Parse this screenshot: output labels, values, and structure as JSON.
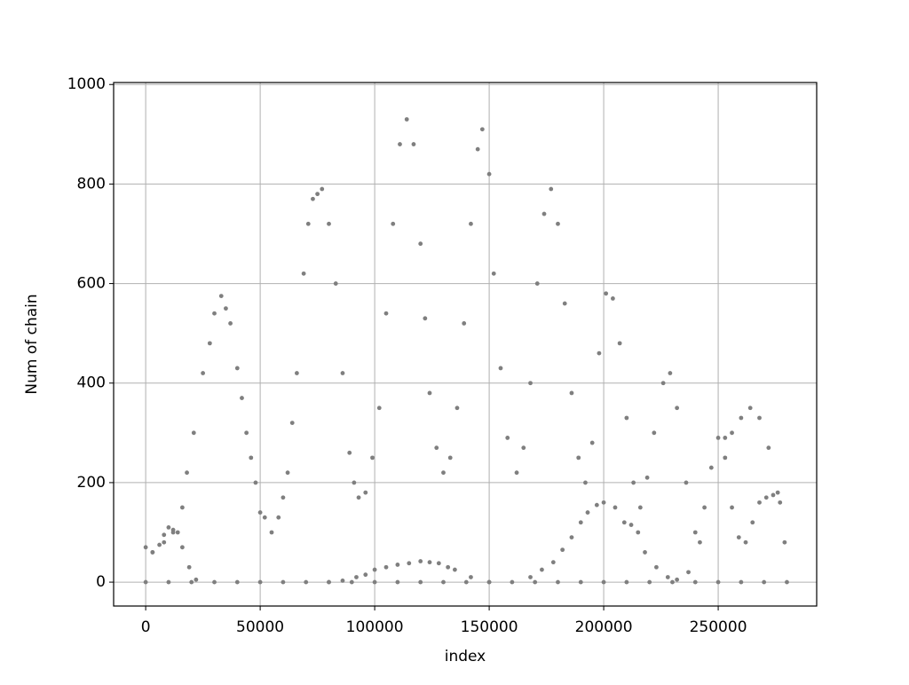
{
  "chart_data": {
    "type": "scatter",
    "xlabel": "index",
    "ylabel": "Num of chain",
    "color": "#7f7f7f",
    "grid": true,
    "xlim": [
      -14000,
      293000
    ],
    "ylim": [
      -48,
      1004
    ],
    "xticks": [
      0,
      50000,
      100000,
      150000,
      200000,
      250000
    ],
    "yticks": [
      0,
      200,
      400,
      600,
      800,
      1000
    ],
    "x": [
      0,
      3000,
      6000,
      8000,
      10000,
      12000,
      14000,
      16000,
      18000,
      21000,
      25000,
      28000,
      30000,
      33000,
      35000,
      37000,
      40000,
      42000,
      44000,
      46000,
      48000,
      50000,
      52000,
      55000,
      58000,
      60000,
      62000,
      64000,
      66000,
      69000,
      71000,
      73000,
      75000,
      77000,
      80000,
      83000,
      86000,
      89000,
      91000,
      93000,
      96000,
      99000,
      102000,
      105000,
      108000,
      111000,
      114000,
      117000,
      120000,
      122000,
      124000,
      127000,
      130000,
      133000,
      136000,
      139000,
      142000,
      145000,
      147000,
      150000,
      152000,
      155000,
      158000,
      162000,
      165000,
      168000,
      171000,
      174000,
      177000,
      180000,
      183000,
      186000,
      189000,
      192000,
      195000,
      198000,
      201000,
      204000,
      207000,
      210000,
      213000,
      216000,
      219000,
      222000,
      226000,
      229000,
      232000,
      236000,
      240000,
      244000,
      247000,
      250000,
      253000,
      256000,
      259000,
      262000,
      265000,
      268000,
      271000,
      274000,
      277000,
      279000,
      253000,
      256000,
      260000,
      264000,
      268000,
      272000,
      276000,
      3000,
      8000,
      12000,
      16000,
      19000,
      22000,
      80000,
      86000,
      92000,
      96000,
      100000,
      105000,
      110000,
      115000,
      120000,
      124000,
      128000,
      132000,
      135000,
      142000,
      150000,
      168000,
      173000,
      178000,
      182000,
      186000,
      190000,
      193000,
      197000,
      200000,
      205000,
      209000,
      212000,
      215000,
      218000,
      223000,
      228000,
      232000,
      237000,
      242000,
      0,
      10000,
      20000,
      30000,
      40000,
      50000,
      60000,
      70000,
      80000,
      90000,
      100000,
      110000,
      120000,
      130000,
      140000,
      150000,
      160000,
      170000,
      180000,
      190000,
      200000,
      210000,
      220000,
      230000,
      240000,
      250000,
      260000,
      270000,
      280000
    ],
    "values": [
      70,
      60,
      75,
      95,
      110,
      105,
      100,
      150,
      220,
      300,
      420,
      480,
      540,
      575,
      550,
      520,
      430,
      370,
      300,
      250,
      200,
      140,
      130,
      100,
      130,
      170,
      220,
      320,
      420,
      620,
      720,
      770,
      780,
      790,
      720,
      600,
      420,
      260,
      200,
      170,
      180,
      250,
      350,
      540,
      720,
      880,
      930,
      880,
      680,
      530,
      380,
      270,
      220,
      250,
      350,
      520,
      720,
      870,
      910,
      820,
      620,
      430,
      290,
      220,
      270,
      400,
      600,
      740,
      790,
      720,
      560,
      380,
      250,
      200,
      280,
      460,
      580,
      570,
      480,
      330,
      200,
      150,
      210,
      300,
      400,
      420,
      350,
      200,
      100,
      150,
      230,
      290,
      250,
      150,
      90,
      80,
      120,
      160,
      170,
      175,
      160,
      80,
      290,
      300,
      330,
      350,
      330,
      270,
      180,
      60,
      80,
      100,
      70,
      30,
      5,
      0,
      3,
      10,
      15,
      25,
      30,
      35,
      38,
      42,
      40,
      38,
      30,
      25,
      10,
      0,
      10,
      25,
      40,
      65,
      90,
      120,
      140,
      155,
      160,
      150,
      120,
      115,
      100,
      60,
      30,
      10,
      5,
      20,
      80,
      0,
      0,
      0,
      0,
      0,
      0,
      0,
      0,
      0,
      0,
      0,
      0,
      0,
      0,
      0,
      0,
      0,
      0,
      0,
      0,
      0,
      0,
      0,
      0,
      0,
      0,
      0,
      0,
      0
    ]
  }
}
